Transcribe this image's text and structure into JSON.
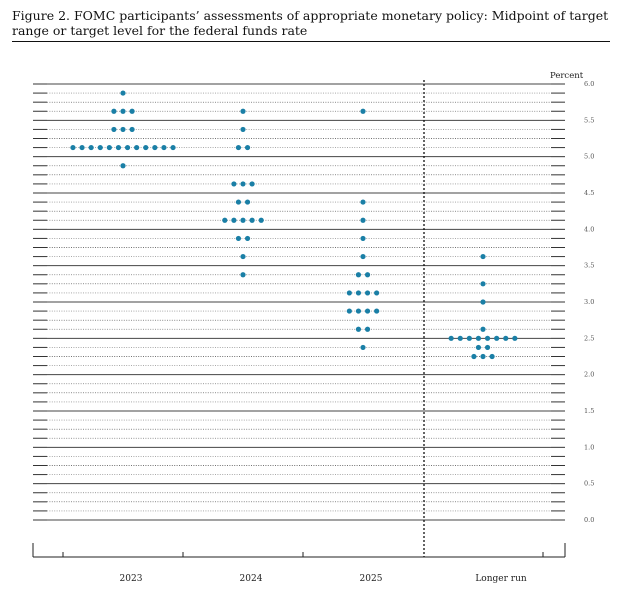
{
  "figure": {
    "title": "Figure 2.  FOMC participants’ assessments of appropriate monetary policy:  Midpoint of target range or target level for the federal funds rate"
  },
  "chart_data": {
    "type": "scatter",
    "subtype": "dot-plot",
    "title": "Figure 2.  FOMC participants’ assessments of appropriate monetary policy:  Midpoint of target range or target level for the federal funds rate",
    "ylabel": "Percent",
    "ylim": [
      0,
      6.0
    ],
    "yticks": [
      "0.0",
      "0.5",
      "1.0",
      "1.5",
      "2.0",
      "2.5",
      "3.0",
      "3.5",
      "4.0",
      "4.5",
      "5.0",
      "5.5",
      "6.0"
    ],
    "categories": [
      "2023",
      "2024",
      "2025",
      "Longer run"
    ],
    "dot_color": "#1a7fa6",
    "grid": true,
    "divider_before_category": "Longer run",
    "columns": [
      {
        "category": "2023",
        "points": [
          {
            "y": 5.875,
            "count": 1
          },
          {
            "y": 5.625,
            "count": 3
          },
          {
            "y": 5.375,
            "count": 3
          },
          {
            "y": 5.125,
            "count": 12
          },
          {
            "y": 4.875,
            "count": 1
          }
        ]
      },
      {
        "category": "2024",
        "points": [
          {
            "y": 5.625,
            "count": 1
          },
          {
            "y": 5.375,
            "count": 1
          },
          {
            "y": 5.125,
            "count": 2
          },
          {
            "y": 4.625,
            "count": 3
          },
          {
            "y": 4.375,
            "count": 2
          },
          {
            "y": 4.125,
            "count": 5
          },
          {
            "y": 3.875,
            "count": 2
          },
          {
            "y": 3.625,
            "count": 1
          },
          {
            "y": 3.375,
            "count": 1
          }
        ]
      },
      {
        "category": "2025",
        "points": [
          {
            "y": 5.625,
            "count": 1
          },
          {
            "y": 4.375,
            "count": 1
          },
          {
            "y": 4.125,
            "count": 1
          },
          {
            "y": 3.875,
            "count": 1
          },
          {
            "y": 3.625,
            "count": 1
          },
          {
            "y": 3.375,
            "count": 2
          },
          {
            "y": 3.125,
            "count": 4
          },
          {
            "y": 2.875,
            "count": 4
          },
          {
            "y": 2.625,
            "count": 2
          },
          {
            "y": 2.375,
            "count": 1
          }
        ]
      },
      {
        "category": "Longer run",
        "points": [
          {
            "y": 3.625,
            "count": 1
          },
          {
            "y": 3.25,
            "count": 1
          },
          {
            "y": 3.0,
            "count": 1
          },
          {
            "y": 2.625,
            "count": 1
          },
          {
            "y": 2.5,
            "count": 8
          },
          {
            "y": 2.375,
            "count": 2
          },
          {
            "y": 2.25,
            "count": 3
          }
        ]
      }
    ]
  }
}
